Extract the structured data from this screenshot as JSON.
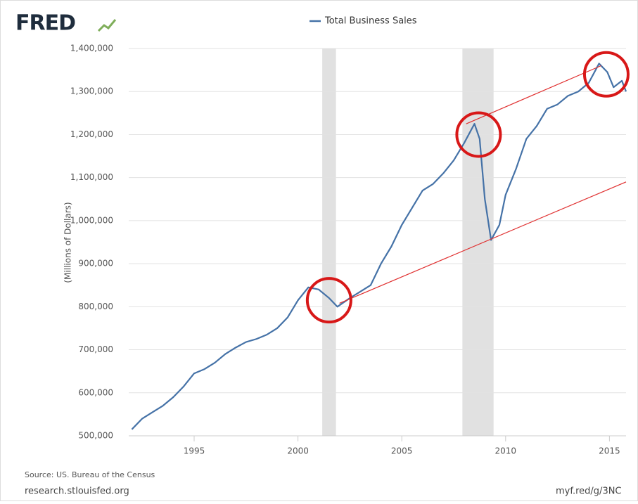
{
  "chart_data": {
    "type": "line",
    "logo": "FRED",
    "y_label": "(Millions of Dollars)",
    "source": "Source: US. Bureau of the Census",
    "site": "research.stlouisfed.org",
    "short_link": "myf.red/g/3NC",
    "xlim": [
      1991.85,
      2015.8
    ],
    "xticks": [
      1995,
      2000,
      2005,
      2010,
      2015
    ],
    "ylim": [
      500000,
      1400000
    ],
    "yticks": [
      {
        "value": 500000,
        "label": "500,000"
      },
      {
        "value": 600000,
        "label": "600,000"
      },
      {
        "value": 700000,
        "label": "700,000"
      },
      {
        "value": 800000,
        "label": "800,000"
      },
      {
        "value": 900000,
        "label": "900,000"
      },
      {
        "value": 1000000,
        "label": "1,000,000"
      },
      {
        "value": 1100000,
        "label": "1,100,000"
      },
      {
        "value": 1200000,
        "label": "1,200,000"
      },
      {
        "value": 1300000,
        "label": "1,300,000"
      },
      {
        "value": 1400000,
        "label": "1,400,000"
      }
    ],
    "grid": true,
    "recessions": [
      [
        2001.17,
        2001.83
      ],
      [
        2007.92,
        2009.42
      ]
    ],
    "trend_lines": [
      {
        "x": [
          2008.1,
          2014.6
        ],
        "y": [
          1225000,
          1360000
        ],
        "color": "#e03030"
      },
      {
        "x": [
          2002.0,
          2015.8
        ],
        "y": [
          808000,
          1090000
        ],
        "color": "#e03030"
      }
    ],
    "highlight_circles": {
      "x": [
        2001.5,
        2008.7,
        2014.85
      ],
      "y": [
        815000,
        1200000,
        1340000
      ],
      "color": "#d81818"
    },
    "series": [
      {
        "name": "Total Business Sales",
        "color": "#4572a7",
        "x": [
          1992.0,
          1992.5,
          1993.0,
          1993.5,
          1994.0,
          1994.5,
          1995.0,
          1995.5,
          1996.0,
          1996.5,
          1997.0,
          1997.5,
          1998.0,
          1998.5,
          1999.0,
          1999.5,
          2000.0,
          2000.5,
          2001.0,
          2001.5,
          2001.9,
          2002.5,
          2003.0,
          2003.5,
          2004.0,
          2004.5,
          2005.0,
          2005.5,
          2006.0,
          2006.5,
          2007.0,
          2007.5,
          2008.0,
          2008.5,
          2008.75,
          2009.0,
          2009.3,
          2009.7,
          2010.0,
          2010.5,
          2011.0,
          2011.5,
          2012.0,
          2012.5,
          2013.0,
          2013.5,
          2014.0,
          2014.5,
          2014.9,
          2015.2,
          2015.6,
          2015.8
        ],
        "values": [
          515000,
          540000,
          555000,
          570000,
          590000,
          615000,
          645000,
          655000,
          670000,
          690000,
          705000,
          718000,
          725000,
          735000,
          750000,
          775000,
          815000,
          845000,
          840000,
          820000,
          800000,
          820000,
          835000,
          850000,
          900000,
          940000,
          990000,
          1030000,
          1070000,
          1085000,
          1110000,
          1140000,
          1180000,
          1225000,
          1190000,
          1050000,
          955000,
          990000,
          1060000,
          1120000,
          1190000,
          1220000,
          1260000,
          1270000,
          1290000,
          1300000,
          1320000,
          1365000,
          1345000,
          1310000,
          1325000,
          1300000
        ]
      }
    ]
  }
}
